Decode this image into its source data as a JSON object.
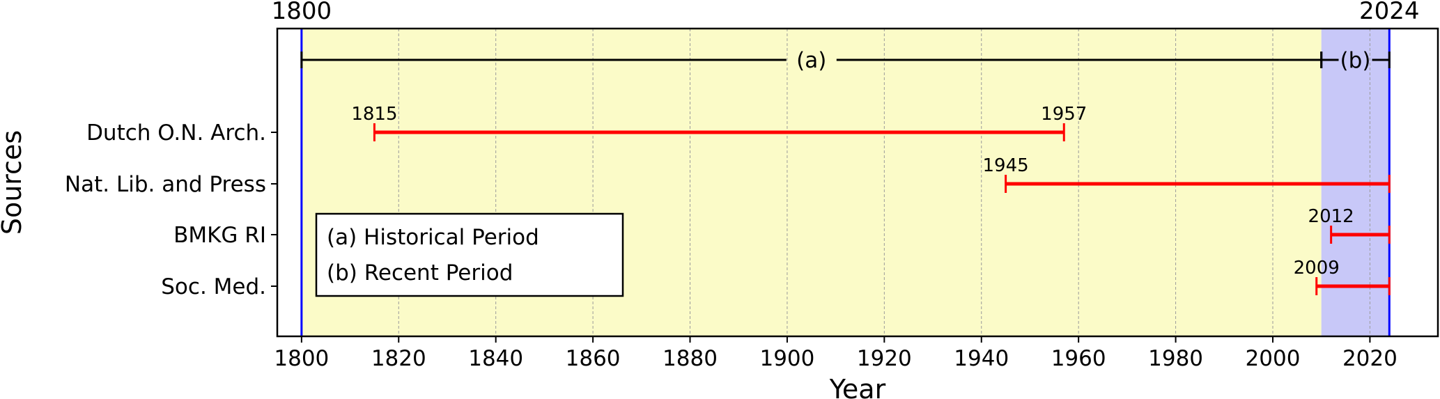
{
  "chart_data": {
    "type": "timeline",
    "xlabel": "Year",
    "ylabel": "Sources",
    "xlim": [
      1795,
      2034
    ],
    "x_ticks": [
      1800,
      1820,
      1840,
      1860,
      1880,
      1900,
      1920,
      1940,
      1960,
      1980,
      2000,
      2020
    ],
    "x_tick_labels": [
      "1800",
      "1820",
      "1840",
      "1860",
      "1880",
      "1900",
      "1920",
      "1940",
      "1960",
      "1980",
      "2000",
      "2020"
    ],
    "grid": "vertical dashed at each tick",
    "top_markers": [
      {
        "label": "1800",
        "x": 1800
      },
      {
        "label": "2024",
        "x": 2024
      }
    ],
    "periods": [
      {
        "label": "(a)",
        "start": 1800,
        "end": 2010,
        "color": "#fbfbc8"
      },
      {
        "label": "(b)",
        "start": 2010,
        "end": 2024,
        "color": "#c8c8f8"
      }
    ],
    "boundary_lines": [
      1800,
      2024
    ],
    "boundary_color": "#0000ff",
    "bar_color": "#ff0000",
    "sources": [
      {
        "name": "Dutch O.N. Arch.",
        "start": 1815,
        "end": 1957,
        "start_label": "1815",
        "end_label": "1957"
      },
      {
        "name": "Nat. Lib. and Press",
        "start": 1945,
        "end": 2024,
        "start_label": "1945",
        "end_label": ""
      },
      {
        "name": "BMKG RI",
        "start": 2012,
        "end": 2024,
        "start_label": "2012",
        "end_label": ""
      },
      {
        "name": "Soc. Med.",
        "start": 2009,
        "end": 2024,
        "start_label": "2009",
        "end_label": ""
      }
    ],
    "legend": {
      "placement": "lower-left",
      "entries": [
        "(a) Historical Period",
        "(b) Recent Period"
      ]
    }
  }
}
